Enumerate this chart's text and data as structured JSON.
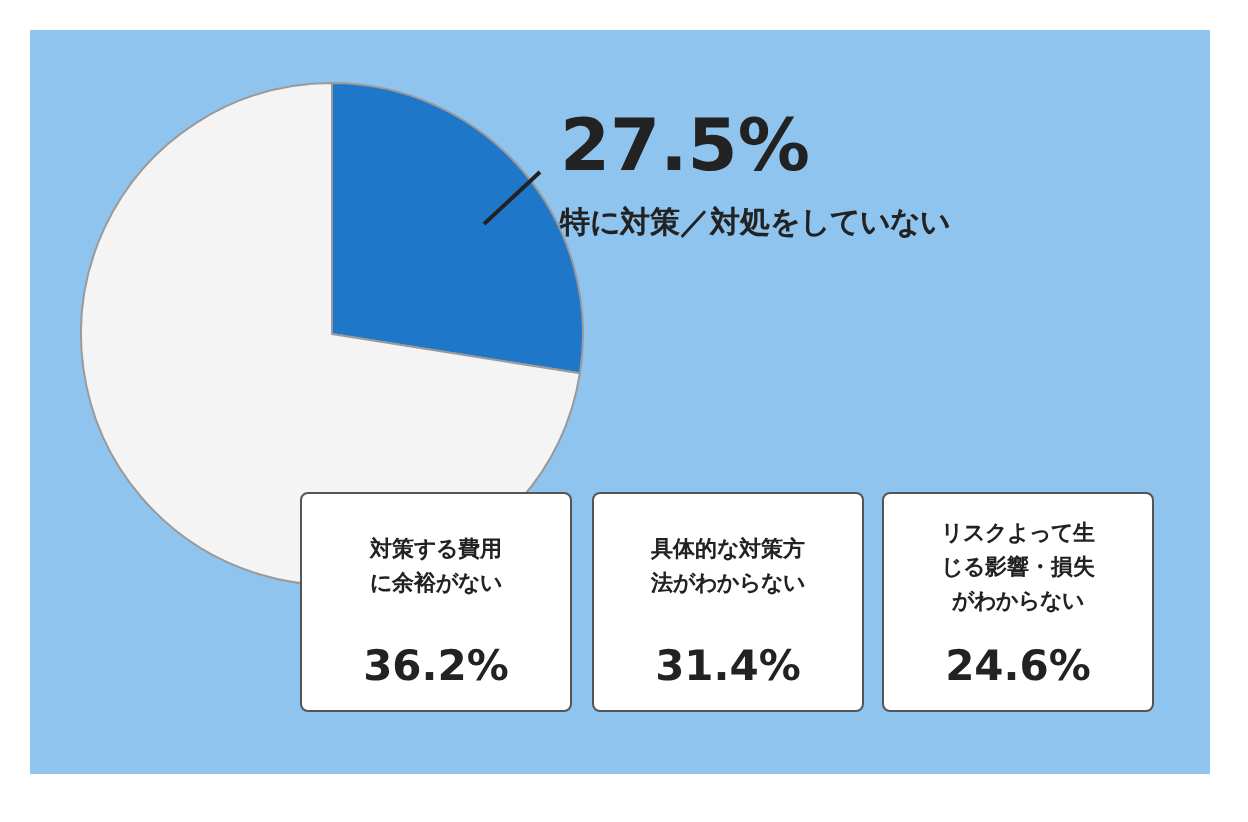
{
  "chart_data": [
    {
      "type": "pie",
      "categories": [
        "特に対策／対処をしていない",
        null
      ],
      "values": [
        27.5,
        72.5
      ],
      "colors": [
        "#1f77c9",
        "#f4f4f4"
      ],
      "value_labels": [
        "27.5%",
        null
      ],
      "legend": false
    },
    {
      "type": "other",
      "categories": [
        "対策する費用に余裕がない",
        "具体的な対策方法がわからない",
        "リスクよって生じる影響・損失がわからない"
      ],
      "value_labels": [
        "36.2%",
        "31.4%",
        "24.6%"
      ]
    }
  ]
}
